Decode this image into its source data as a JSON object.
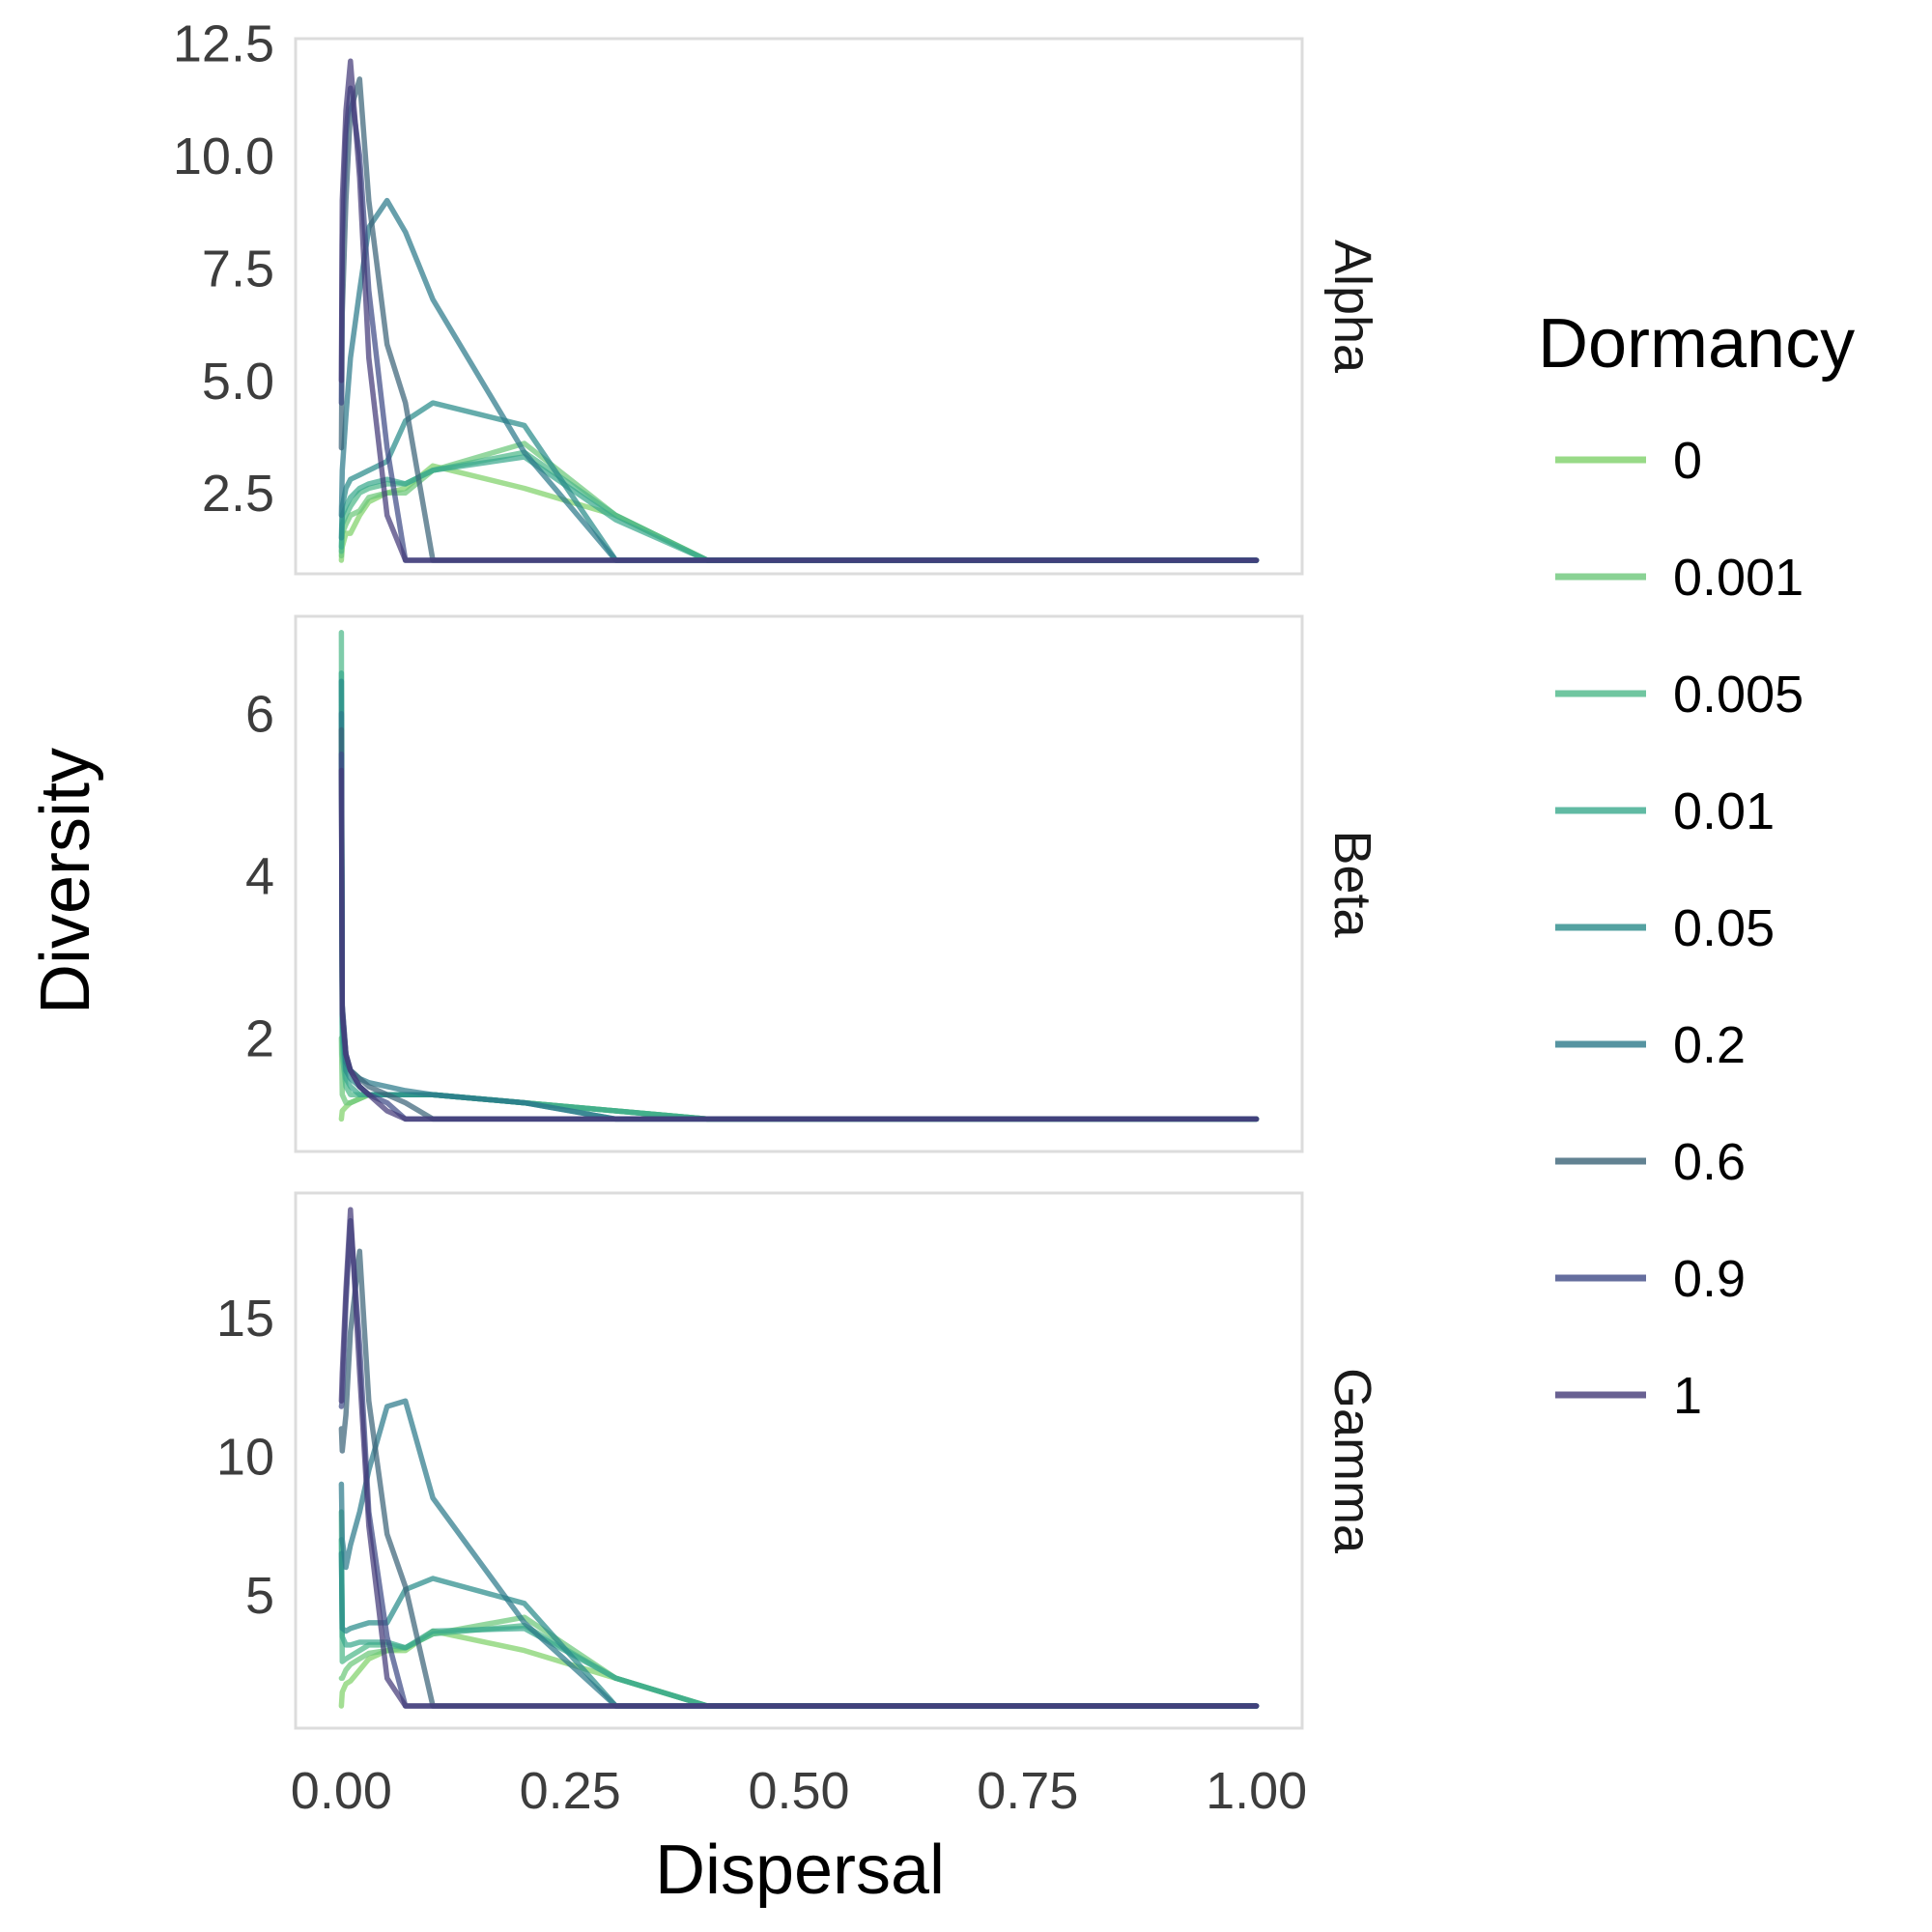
{
  "chart_data": {
    "type": "line",
    "xlabel": "Dispersal",
    "ylabel": "Diversity",
    "legend_title": "Dormancy",
    "legend_position": "right",
    "grid": false,
    "x_ticks": [
      "0.00",
      "0.25",
      "0.50",
      "0.75",
      "1.00"
    ],
    "xlim": [
      -0.05,
      1.05
    ],
    "x": [
      0,
      0.001,
      0.005,
      0.01,
      0.02,
      0.03,
      0.05,
      0.07,
      0.1,
      0.2,
      0.3,
      0.4,
      1.0
    ],
    "legend": [
      {
        "name": "0",
        "color": "#7fd16a"
      },
      {
        "name": "0.001",
        "color": "#6cc77a"
      },
      {
        "name": "0.005",
        "color": "#4db889"
      },
      {
        "name": "0.01",
        "color": "#3aa98d"
      },
      {
        "name": "0.05",
        "color": "#2a8c8a"
      },
      {
        "name": "0.2",
        "color": "#2d7a8a"
      },
      {
        "name": "0.6",
        "color": "#3b6478"
      },
      {
        "name": "0.9",
        "color": "#3f4b86"
      },
      {
        "name": "1",
        "color": "#443a78"
      }
    ],
    "panels": [
      {
        "label": "Alpha",
        "ylim": [
          0.7,
          12.6
        ],
        "y_ticks": [
          "2.5",
          "5.0",
          "7.5",
          "10.0",
          "12.5"
        ],
        "series": [
          {
            "name": "0",
            "values": [
              1.0,
              1.3,
              1.6,
              1.6,
              2.0,
              2.3,
              2.5,
              2.6,
              3.1,
              2.6,
              2.0,
              1.0,
              1.0
            ]
          },
          {
            "name": "0.001",
            "values": [
              1.1,
              1.6,
              1.8,
              2.0,
              2.1,
              2.4,
              2.5,
              2.5,
              3.0,
              3.6,
              2.0,
              1.0,
              1.0
            ]
          },
          {
            "name": "0.005",
            "values": [
              1.2,
              1.8,
              2.0,
              2.2,
              2.5,
              2.6,
              2.7,
              2.7,
              3.0,
              3.4,
              2.0,
              1.0,
              1.0
            ]
          },
          {
            "name": "0.01",
            "values": [
              1.3,
              2.0,
              2.2,
              2.4,
              2.6,
              2.7,
              2.8,
              2.7,
              3.0,
              3.3,
              1.9,
              1.0,
              1.0
            ]
          },
          {
            "name": "0.05",
            "values": [
              1.5,
              2.2,
              2.6,
              2.8,
              2.9,
              3.0,
              3.2,
              4.1,
              4.5,
              4.0,
              1.0,
              1.0,
              1.0
            ]
          },
          {
            "name": "0.2",
            "values": [
              2.0,
              3.0,
              4.2,
              5.5,
              7.0,
              8.4,
              9.0,
              8.3,
              6.8,
              3.4,
              1.0,
              1.0,
              1.0
            ]
          },
          {
            "name": "0.6",
            "values": [
              3.5,
              6.5,
              9.0,
              11.0,
              11.7,
              9.0,
              5.8,
              4.5,
              1.0,
              1.0,
              1.0,
              1.0,
              1.0
            ]
          },
          {
            "name": "0.9",
            "values": [
              4.5,
              8.0,
              10.5,
              11.5,
              10.0,
              7.0,
              3.5,
              1.0,
              1.0,
              1.0,
              1.0,
              1.0,
              1.0
            ]
          },
          {
            "name": "1",
            "values": [
              5.0,
              9.0,
              11.0,
              12.1,
              9.5,
              5.5,
              2.0,
              1.0,
              1.0,
              1.0,
              1.0,
              1.0,
              1.0
            ]
          }
        ]
      },
      {
        "label": "Beta",
        "ylim": [
          0.6,
          7.2
        ],
        "y_ticks": [
          "2",
          "4",
          "6"
        ],
        "series": [
          {
            "name": "0",
            "values": [
              1.0,
              1.1,
              1.15,
              1.2,
              1.25,
              1.3,
              1.3,
              1.3,
              1.3,
              1.2,
              1.1,
              1.0,
              1.0
            ]
          },
          {
            "name": "0.001",
            "values": [
              2.0,
              1.3,
              1.2,
              1.2,
              1.25,
              1.3,
              1.3,
              1.3,
              1.3,
              1.2,
              1.1,
              1.0,
              1.0
            ]
          },
          {
            "name": "0.005",
            "values": [
              7.0,
              1.8,
              1.4,
              1.3,
              1.3,
              1.3,
              1.3,
              1.3,
              1.3,
              1.2,
              1.1,
              1.0,
              1.0
            ]
          },
          {
            "name": "0.01",
            "values": [
              6.5,
              2.0,
              1.5,
              1.4,
              1.3,
              1.3,
              1.3,
              1.3,
              1.3,
              1.2,
              1.1,
              1.0,
              1.0
            ]
          },
          {
            "name": "0.05",
            "values": [
              6.4,
              2.2,
              1.6,
              1.5,
              1.4,
              1.3,
              1.3,
              1.3,
              1.3,
              1.2,
              1.0,
              1.0,
              1.0
            ]
          },
          {
            "name": "0.2",
            "values": [
              6.0,
              2.3,
              1.7,
              1.6,
              1.5,
              1.45,
              1.4,
              1.35,
              1.3,
              1.2,
              1.0,
              1.0,
              1.0
            ]
          },
          {
            "name": "0.6",
            "values": [
              5.8,
              2.4,
              1.8,
              1.6,
              1.5,
              1.4,
              1.3,
              1.2,
              1.0,
              1.0,
              1.0,
              1.0,
              1.0
            ]
          },
          {
            "name": "0.9",
            "values": [
              5.5,
              2.4,
              1.8,
              1.6,
              1.4,
              1.3,
              1.2,
              1.0,
              1.0,
              1.0,
              1.0,
              1.0,
              1.0
            ]
          },
          {
            "name": "1",
            "values": [
              5.3,
              2.3,
              1.8,
              1.6,
              1.4,
              1.3,
              1.1,
              1.0,
              1.0,
              1.0,
              1.0,
              1.0,
              1.0
            ]
          }
        ]
      },
      {
        "label": "Gamma",
        "ylim": [
          0.2,
          19.5
        ],
        "y_ticks": [
          "5",
          "10",
          "15"
        ],
        "series": [
          {
            "name": "0",
            "values": [
              1.0,
              1.5,
              1.8,
              1.9,
              2.3,
              2.7,
              3.0,
              3.0,
              3.7,
              3.0,
              2.0,
              1.0,
              1.0
            ]
          },
          {
            "name": "0.001",
            "values": [
              2.0,
              2.0,
              2.3,
              2.5,
              2.7,
              2.9,
              3.0,
              3.1,
              3.6,
              4.2,
              2.0,
              1.0,
              1.0
            ]
          },
          {
            "name": "0.005",
            "values": [
              8.0,
              2.6,
              2.7,
              2.8,
              3.0,
              3.2,
              3.2,
              3.1,
              3.6,
              3.9,
              2.0,
              1.0,
              1.0
            ]
          },
          {
            "name": "0.01",
            "values": [
              7.0,
              3.5,
              3.2,
              3.2,
              3.3,
              3.3,
              3.3,
              3.1,
              3.7,
              3.8,
              2.0,
              1.0,
              1.0
            ]
          },
          {
            "name": "0.05",
            "values": [
              6.5,
              3.8,
              3.7,
              3.8,
              3.9,
              4.0,
              4.0,
              5.2,
              5.6,
              4.7,
              1.0,
              1.0,
              1.0
            ]
          },
          {
            "name": "0.2",
            "values": [
              9.0,
              7.0,
              6.0,
              6.8,
              8.0,
              9.5,
              11.8,
              12.0,
              8.5,
              4.0,
              1.0,
              1.0,
              1.0
            ]
          },
          {
            "name": "0.6",
            "values": [
              11.0,
              10.2,
              11.5,
              14.5,
              17.4,
              12.0,
              7.2,
              5.3,
              1.0,
              1.0,
              1.0,
              1.0,
              1.0
            ]
          },
          {
            "name": "0.9",
            "values": [
              11.8,
              12.0,
              15.5,
              18.5,
              14.0,
              8.0,
              3.5,
              1.0,
              1.0,
              1.0,
              1.0,
              1.0,
              1.0
            ]
          },
          {
            "name": "1",
            "values": [
              12.0,
              13.0,
              16.0,
              18.9,
              13.0,
              7.5,
              2.0,
              1.0,
              1.0,
              1.0,
              1.0,
              1.0,
              1.0
            ]
          }
        ]
      }
    ]
  }
}
